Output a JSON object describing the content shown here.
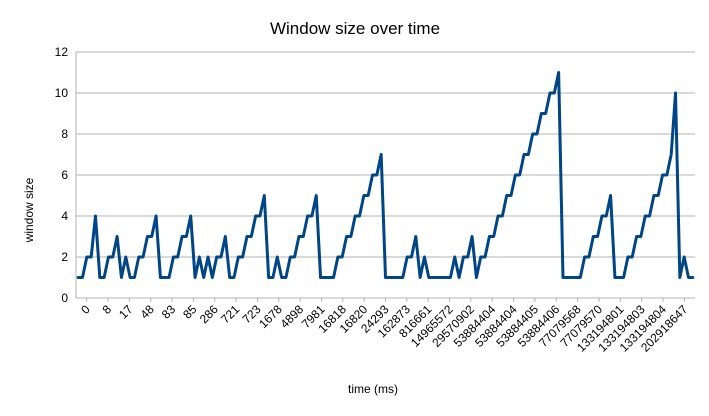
{
  "chart_data": {
    "type": "line",
    "title": "Window size over time",
    "xlabel": "time (ms)",
    "ylabel": "window size",
    "ylim": [
      0,
      12
    ],
    "yticks": [
      0,
      2,
      4,
      6,
      8,
      10,
      12
    ],
    "xtick_labels": [
      "0",
      "8",
      "17",
      "48",
      "83",
      "85",
      "286",
      "721",
      "723",
      "1678",
      "4898",
      "7981",
      "16818",
      "16820",
      "24293",
      "162873",
      "816661",
      "14965572",
      "29570902",
      "53884404",
      "53884404",
      "53884405",
      "53884406",
      "77079568",
      "77079570",
      "133194801",
      "133194803",
      "133194804",
      "202918647"
    ],
    "grid": "horizontal",
    "legend": "none",
    "line_color": "#004586",
    "series": [
      {
        "values": [
          1,
          1,
          2,
          2,
          4,
          1,
          1,
          2,
          2,
          3,
          1,
          2,
          1,
          1,
          2,
          2,
          3,
          3,
          4,
          1,
          1,
          1,
          2,
          2,
          3,
          3,
          4,
          1,
          2,
          1,
          2,
          1,
          2,
          2,
          3,
          1,
          1,
          2,
          2,
          3,
          3,
          4,
          4,
          5,
          1,
          1,
          2,
          1,
          1,
          2,
          2,
          3,
          3,
          4,
          4,
          5,
          1,
          1,
          1,
          1,
          2,
          2,
          3,
          3,
          4,
          4,
          5,
          5,
          6,
          6,
          7,
          1,
          1,
          1,
          1,
          1,
          2,
          2,
          3,
          1,
          2,
          1,
          1,
          1,
          1,
          1,
          1,
          2,
          1,
          2,
          2,
          3,
          1,
          2,
          2,
          3,
          3,
          4,
          4,
          5,
          5,
          6,
          6,
          7,
          7,
          8,
          8,
          9,
          9,
          10,
          10,
          11,
          1,
          1,
          1,
          1,
          1,
          2,
          2,
          3,
          3,
          4,
          4,
          5,
          1,
          1,
          1,
          2,
          2,
          3,
          3,
          4,
          4,
          5,
          5,
          6,
          6,
          7,
          10,
          1,
          2,
          1,
          1
        ]
      }
    ]
  }
}
